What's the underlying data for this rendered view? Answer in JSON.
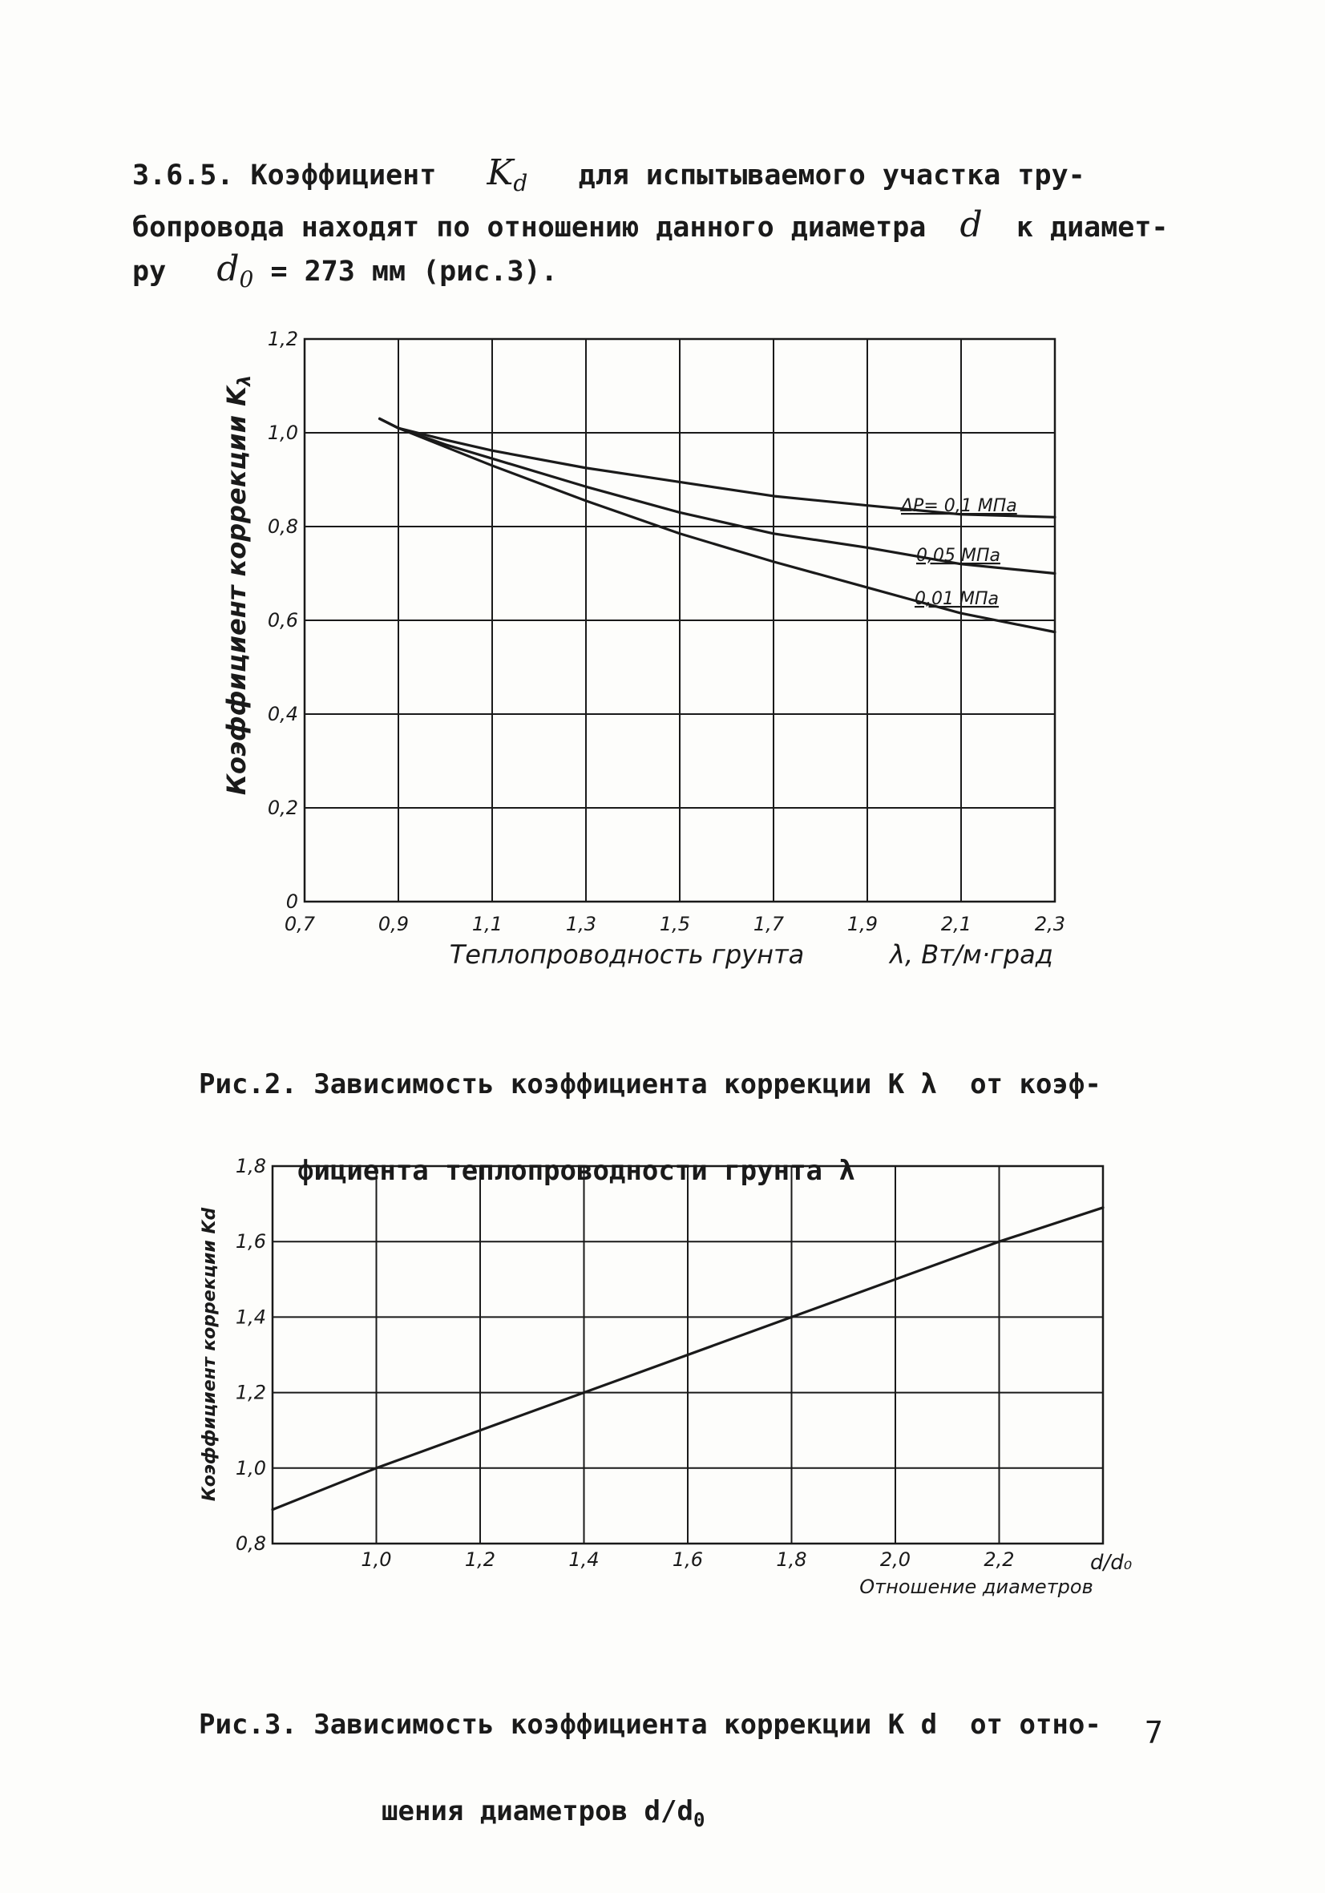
{
  "paragraph": {
    "number": "3.6.5.",
    "line1_text_a": "Коэффициент",
    "symbol_k": "K",
    "symbol_k_sub": "d",
    "line1_text_b": "для испытываемого участка тру-",
    "line2_text_a": "бопровода находят по отношению данного диаметра",
    "symbol_d": "d",
    "line2_text_b": "к диамет-",
    "line3_text_a": "ру",
    "symbol_d0": "d",
    "symbol_d0_sub": "0",
    "line3_text_b": "= 273 мм (рис.3)."
  },
  "figure2": {
    "caption_line1": "Рис.2. Зависимость коэффициента коррекции K λ  от коэф-",
    "caption_line2": "фициента теплопроводности грунта λ"
  },
  "figure3": {
    "caption_line1": "Рис.3. Зависимость коэффициента коррекции K d  от отно-",
    "caption_line2": "шения диаметров d/d",
    "caption_line2_sub": "0"
  },
  "page_number": "7",
  "colors": {
    "ink": "#1a1a1a",
    "paper": "#fdfdfb"
  },
  "chart_data": [
    {
      "type": "line",
      "id": "chart1",
      "ylabel": "Коэффициент коррекции K",
      "ylabel_sub": "λ",
      "xlabel": "Теплопроводность грунта",
      "xunit": "λ, Вт/м·град",
      "xlim": [
        0.7,
        2.3
      ],
      "ylim": [
        0,
        1.2
      ],
      "xticks": [
        0.7,
        0.9,
        1.1,
        1.3,
        1.5,
        1.7,
        1.9,
        2.1,
        2.3
      ],
      "xtick_labels": [
        "0,7",
        "0,9",
        "1,1",
        "1,3",
        "1,5",
        "1,7",
        "1,9",
        "2,1",
        "2,3"
      ],
      "yticks": [
        0,
        0.2,
        0.4,
        0.6,
        0.8,
        1.0,
        1.2
      ],
      "ytick_labels": [
        "0",
        "0,2",
        "0,4",
        "0,6",
        "0,8",
        "1,0",
        "1,2"
      ],
      "grid": true,
      "series": [
        {
          "name": "ΔP= 0,1 МПа",
          "x": [
            0.86,
            0.9,
            1.0,
            1.1,
            1.3,
            1.5,
            1.7,
            1.9,
            2.1,
            2.3
          ],
          "y": [
            1.03,
            1.01,
            0.985,
            0.962,
            0.925,
            0.895,
            0.865,
            0.845,
            0.826,
            0.82
          ]
        },
        {
          "name": "0,05 МПа",
          "x": [
            0.86,
            0.9,
            1.0,
            1.1,
            1.3,
            1.5,
            1.7,
            1.9,
            2.1,
            2.3
          ],
          "y": [
            1.03,
            1.01,
            0.975,
            0.945,
            0.885,
            0.83,
            0.785,
            0.755,
            0.72,
            0.7
          ]
        },
        {
          "name": "0,01 МПа",
          "x": [
            0.86,
            0.9,
            1.0,
            1.1,
            1.3,
            1.5,
            1.7,
            1.9,
            2.1,
            2.3
          ],
          "y": [
            1.03,
            1.01,
            0.97,
            0.93,
            0.855,
            0.785,
            0.725,
            0.67,
            0.615,
            0.575
          ]
        }
      ]
    },
    {
      "type": "line",
      "id": "chart2",
      "ylabel": "Коэффициент коррекции Kd",
      "xlabel": "Отношение диаметров",
      "xunit": "d/d₀",
      "xlim": [
        0.8,
        2.4
      ],
      "ylim": [
        0.8,
        1.8
      ],
      "xticks": [
        1.0,
        1.2,
        1.4,
        1.6,
        1.8,
        2.0,
        2.2
      ],
      "xtick_labels": [
        "1,0",
        "1,2",
        "1,4",
        "1,6",
        "1,8",
        "2,0",
        "2,2"
      ],
      "yticks": [
        0.8,
        1.0,
        1.2,
        1.4,
        1.6,
        1.8
      ],
      "ytick_labels": [
        "0,8",
        "1,0",
        "1,2",
        "1,4",
        "1,6",
        "1,8"
      ],
      "grid": true,
      "series": [
        {
          "name": "",
          "x": [
            0.8,
            1.0,
            2.2,
            2.4
          ],
          "y": [
            0.89,
            1.0,
            1.6,
            1.69
          ]
        }
      ]
    }
  ]
}
